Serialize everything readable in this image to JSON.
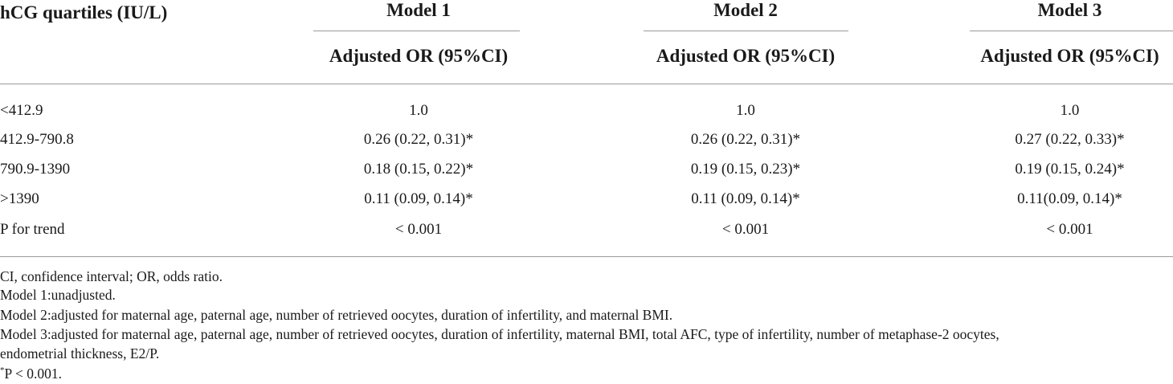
{
  "header": {
    "row_label": "hCG quartiles (IU/L)",
    "models": [
      "Model 1",
      "Model 2",
      "Model 3"
    ],
    "subheader": "Adjusted OR (95%CI)"
  },
  "rows": [
    {
      "label": "<412.9",
      "values": [
        "1.0",
        "1.0",
        "1.0"
      ]
    },
    {
      "label": "412.9-790.8",
      "values": [
        "0.26 (0.22, 0.31)*",
        "0.26 (0.22, 0.31)*",
        "0.27 (0.22, 0.33)*"
      ]
    },
    {
      "label": "790.9-1390",
      "values": [
        "0.18 (0.15, 0.22)*",
        "0.19 (0.15, 0.23)*",
        "0.19 (0.15, 0.24)*"
      ]
    },
    {
      "label": ">1390",
      "values": [
        "0.11 (0.09, 0.14)*",
        "0.11 (0.09, 0.14)*",
        "0.11(0.09, 0.14)*"
      ]
    },
    {
      "label": "P for trend",
      "values": [
        "< 0.001",
        "< 0.001",
        "< 0.001"
      ]
    }
  ],
  "footnotes": [
    "CI, confidence interval; OR, odds ratio.",
    "Model 1:unadjusted.",
    "Model 2:adjusted for maternal age, paternal age, number of retrieved oocytes, duration of infertility, and maternal BMI.",
    "Model 3:adjusted for maternal age, paternal age, number of retrieved oocytes, duration of infertility, maternal BMI, total AFC, type of infertility, number of metaphase-2 oocytes,",
    "endometrial thickness, E2/P."
  ],
  "significance_note": {
    "star": "*",
    "text": "P < 0.001."
  }
}
